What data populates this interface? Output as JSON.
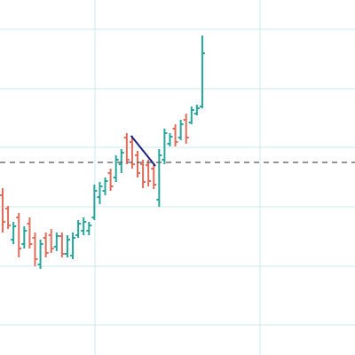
{
  "chart_data": {
    "type": "ohlc",
    "categories": [
      null,
      null,
      null,
      null,
      null,
      null,
      null,
      null,
      null,
      null,
      null,
      null,
      null,
      null,
      null,
      null,
      null,
      null,
      null,
      null,
      null,
      null,
      null,
      null,
      null,
      null,
      null,
      null,
      null,
      null,
      null,
      null,
      null,
      null,
      null,
      null,
      null,
      null
    ],
    "open": [
      180,
      165,
      130,
      155,
      125,
      148,
      132,
      102,
      132,
      135,
      122,
      134,
      114,
      112,
      135,
      140,
      140,
      155,
      178,
      185,
      205,
      200,
      215,
      245,
      240,
      225,
      215,
      214,
      210,
      175,
      220,
      238,
      255,
      245,
      265,
      262,
      272,
      280
    ],
    "high": [
      188,
      168,
      150,
      160,
      145,
      155,
      138,
      130,
      138,
      142,
      138,
      138,
      135,
      138,
      152,
      155,
      150,
      192,
      195,
      200,
      210,
      225,
      232,
      250,
      247,
      230,
      220,
      220,
      215,
      232,
      255,
      250,
      260,
      265,
      272,
      280,
      282,
      360
    ],
    "low": [
      138,
      142,
      125,
      110,
      120,
      120,
      100,
      97,
      110,
      115,
      117,
      110,
      110,
      108,
      132,
      135,
      135,
      152,
      170,
      180,
      185,
      195,
      205,
      215,
      210,
      200,
      188,
      190,
      187,
      167,
      215,
      235,
      235,
      242,
      238,
      260,
      270,
      278
    ],
    "close": [
      150,
      146,
      145,
      120,
      140,
      125,
      108,
      125,
      115,
      120,
      134,
      114,
      130,
      132,
      148,
      150,
      146,
      185,
      190,
      196,
      190,
      220,
      228,
      220,
      215,
      205,
      195,
      196,
      192,
      225,
      250,
      246,
      240,
      260,
      245,
      276,
      278,
      340
    ],
    "up_color": "#26a69a",
    "down_color": "#e06c5c",
    "ylim": [
      0,
      400
    ],
    "yticks": [
      34,
      100,
      167,
      234,
      300,
      367
    ],
    "grid": true,
    "hline": 217,
    "trendline": {
      "x": [
        23.8,
        28.3
      ],
      "y": [
        247,
        213
      ],
      "color": "#1a237e"
    }
  }
}
